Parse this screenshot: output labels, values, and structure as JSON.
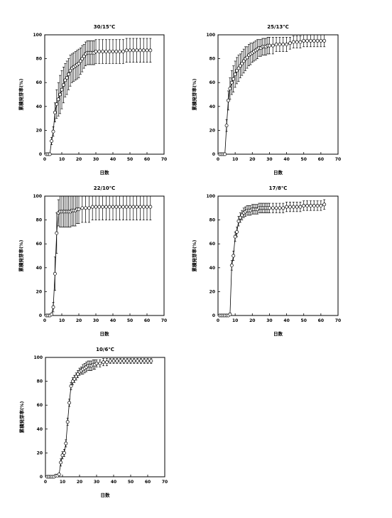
{
  "chart_data": [
    {
      "type": "line",
      "title": "30/15℃",
      "xlabel": "日数",
      "ylabel": "累積発芽率(%)",
      "xlim": [
        0,
        70
      ],
      "ylim": [
        0,
        100
      ],
      "xticks": [
        0,
        10,
        20,
        30,
        40,
        50,
        60,
        70
      ],
      "yticks": [
        0,
        20,
        40,
        60,
        80,
        100
      ],
      "grid": false,
      "series": [
        {
          "marker": "open-circle",
          "x": [
            1,
            2,
            3,
            4,
            5,
            6,
            7,
            8,
            9,
            10,
            11,
            12,
            13,
            14,
            15,
            16,
            17,
            18,
            19,
            20,
            21,
            22,
            23,
            24,
            25,
            26,
            27,
            28,
            29,
            30,
            32,
            34,
            36,
            38,
            40,
            42,
            44,
            46,
            48,
            50,
            52,
            54,
            56,
            58,
            60,
            62
          ],
          "y": [
            0,
            0,
            0,
            11,
            19,
            35,
            42,
            46,
            50,
            54,
            58,
            62,
            64,
            67,
            70,
            72,
            73,
            74,
            75,
            76,
            78,
            80,
            82,
            84,
            85,
            85,
            85,
            85,
            85,
            86,
            86,
            86,
            86,
            86,
            86,
            86,
            86,
            86,
            87,
            87,
            87,
            87,
            87,
            87,
            87,
            87
          ],
          "error": [
            0,
            0,
            0,
            3,
            4,
            8,
            12,
            14,
            16,
            16,
            15,
            14,
            14,
            13,
            13,
            12,
            12,
            12,
            12,
            12,
            11,
            11,
            10,
            10,
            10,
            10,
            10,
            10,
            10,
            10,
            10,
            10,
            10,
            10,
            10,
            10,
            10,
            10,
            10,
            10,
            10,
            10,
            10,
            10,
            10,
            10
          ]
        }
      ]
    },
    {
      "type": "line",
      "title": "25/13℃",
      "xlabel": "日数",
      "ylabel": "累積発芽率(%)",
      "xlim": [
        0,
        70
      ],
      "ylim": [
        0,
        100
      ],
      "xticks": [
        0,
        10,
        20,
        30,
        40,
        50,
        60,
        70
      ],
      "yticks": [
        0,
        20,
        40,
        60,
        80,
        100
      ],
      "grid": false,
      "series": [
        {
          "marker": "open-circle",
          "x": [
            1,
            2,
            3,
            4,
            5,
            6,
            7,
            8,
            9,
            10,
            11,
            12,
            13,
            14,
            15,
            16,
            17,
            18,
            19,
            20,
            21,
            22,
            23,
            24,
            25,
            26,
            27,
            28,
            29,
            30,
            32,
            34,
            36,
            38,
            40,
            42,
            44,
            46,
            48,
            50,
            52,
            54,
            56,
            58,
            60,
            62
          ],
          "y": [
            0,
            0,
            0,
            0,
            24,
            45,
            55,
            60,
            63,
            67,
            70,
            72,
            74,
            76,
            78,
            80,
            81,
            83,
            84,
            85,
            86,
            87,
            88,
            89,
            89,
            90,
            90,
            90,
            91,
            91,
            91,
            92,
            92,
            92,
            92,
            93,
            94,
            94,
            94,
            95,
            95,
            95,
            95,
            95,
            95,
            95
          ],
          "error": [
            0,
            0,
            0,
            0,
            5,
            8,
            9,
            10,
            11,
            11,
            11,
            11,
            10,
            10,
            10,
            10,
            9,
            9,
            9,
            8,
            8,
            8,
            8,
            7,
            7,
            7,
            7,
            7,
            7,
            7,
            7,
            6,
            6,
            6,
            6,
            5,
            5,
            5,
            5,
            5,
            5,
            5,
            5,
            5,
            5,
            5
          ]
        }
      ]
    },
    {
      "type": "line",
      "title": "22/10℃",
      "xlabel": "日数",
      "ylabel": "累積発芽率(%)",
      "xlim": [
        0,
        70
      ],
      "ylim": [
        0,
        100
      ],
      "xticks": [
        0,
        10,
        20,
        30,
        40,
        50,
        60,
        70
      ],
      "yticks": [
        0,
        20,
        40,
        60,
        80,
        100
      ],
      "grid": false,
      "series": [
        {
          "marker": "open-circle",
          "x": [
            1,
            2,
            3,
            4,
            5,
            6,
            7,
            8,
            9,
            10,
            11,
            12,
            13,
            14,
            15,
            16,
            17,
            18,
            19,
            20,
            22,
            24,
            26,
            28,
            30,
            32,
            34,
            36,
            38,
            40,
            42,
            44,
            46,
            48,
            50,
            52,
            54,
            56,
            58,
            60,
            62
          ],
          "y": [
            0,
            0,
            0,
            1,
            7,
            35,
            69,
            86,
            87,
            87,
            87,
            87,
            87,
            87,
            87,
            88,
            88,
            88,
            89,
            89,
            90,
            90,
            90,
            91,
            91,
            91,
            91,
            91,
            91,
            91,
            91,
            91,
            91,
            91,
            91,
            91,
            91,
            91,
            91,
            91,
            91
          ],
          "error": [
            0,
            0,
            0,
            1,
            4,
            14,
            17,
            11,
            13,
            13,
            13,
            13,
            13,
            13,
            13,
            13,
            13,
            13,
            12,
            12,
            12,
            12,
            12,
            11,
            11,
            11,
            11,
            11,
            11,
            11,
            11,
            11,
            11,
            11,
            11,
            11,
            11,
            11,
            11,
            11,
            11
          ]
        }
      ]
    },
    {
      "type": "line",
      "title": "17/8℃",
      "xlabel": "日数",
      "ylabel": "累積発芽率(%)",
      "xlim": [
        0,
        70
      ],
      "ylim": [
        0,
        100
      ],
      "xticks": [
        0,
        10,
        20,
        30,
        40,
        50,
        60,
        70
      ],
      "yticks": [
        0,
        20,
        40,
        60,
        80,
        100
      ],
      "grid": false,
      "series": [
        {
          "marker": "open-circle",
          "x": [
            1,
            2,
            3,
            4,
            5,
            6,
            7,
            8,
            9,
            10,
            11,
            12,
            13,
            14,
            15,
            16,
            17,
            18,
            19,
            20,
            21,
            22,
            23,
            24,
            25,
            26,
            27,
            28,
            29,
            30,
            32,
            34,
            36,
            38,
            40,
            42,
            44,
            46,
            48,
            50,
            52,
            54,
            56,
            58,
            60,
            62
          ],
          "y": [
            0,
            0,
            0,
            0,
            0,
            0,
            1,
            42,
            50,
            66,
            70,
            79,
            82,
            84,
            86,
            87,
            88,
            88,
            88,
            89,
            89,
            89,
            89,
            90,
            90,
            90,
            90,
            90,
            90,
            90,
            90,
            90,
            90,
            90,
            91,
            91,
            91,
            91,
            91,
            92,
            92,
            92,
            92,
            92,
            92,
            93
          ],
          "error": [
            0,
            0,
            0,
            0,
            0,
            0,
            1,
            4,
            4,
            4,
            4,
            4,
            4,
            4,
            4,
            4,
            4,
            4,
            4,
            4,
            4,
            4,
            4,
            4,
            4,
            4,
            4,
            4,
            4,
            4,
            4,
            4,
            4,
            4,
            4,
            4,
            4,
            4,
            4,
            4,
            4,
            4,
            4,
            4,
            4,
            4
          ]
        }
      ]
    },
    {
      "type": "line",
      "title": "10/6℃",
      "xlabel": "日数",
      "ylabel": "累積発芽率(%)",
      "xlim": [
        0,
        70
      ],
      "ylim": [
        0,
        100
      ],
      "xticks": [
        0,
        10,
        20,
        30,
        40,
        50,
        60,
        70
      ],
      "yticks": [
        0,
        20,
        40,
        60,
        80,
        100
      ],
      "grid": false,
      "series": [
        {
          "marker": "open-circle",
          "x": [
            1,
            2,
            3,
            4,
            5,
            6,
            7,
            8,
            9,
            10,
            11,
            12,
            13,
            14,
            15,
            16,
            17,
            18,
            19,
            20,
            21,
            22,
            23,
            24,
            25,
            26,
            27,
            28,
            29,
            30,
            32,
            34,
            36,
            38,
            40,
            42,
            44,
            46,
            48,
            50,
            52,
            54,
            56,
            58,
            60,
            62
          ],
          "y": [
            0,
            0,
            0,
            0,
            0,
            1,
            1,
            2,
            12,
            18,
            20,
            28,
            46,
            62,
            76,
            80,
            82,
            84,
            86,
            88,
            89,
            90,
            91,
            92,
            93,
            93,
            93,
            94,
            94,
            95,
            95,
            96,
            96,
            97,
            97,
            97,
            97,
            97,
            97,
            97,
            97,
            97,
            97,
            97,
            97,
            97
          ],
          "error": [
            0,
            0,
            0,
            0,
            0,
            1,
            1,
            1,
            3,
            3,
            3,
            3,
            3,
            3,
            3,
            3,
            3,
            3,
            3,
            3,
            3,
            4,
            4,
            4,
            4,
            4,
            4,
            4,
            4,
            3,
            3,
            3,
            3,
            2,
            2,
            2,
            2,
            2,
            2,
            2,
            2,
            2,
            2,
            2,
            2,
            2
          ]
        }
      ]
    }
  ]
}
